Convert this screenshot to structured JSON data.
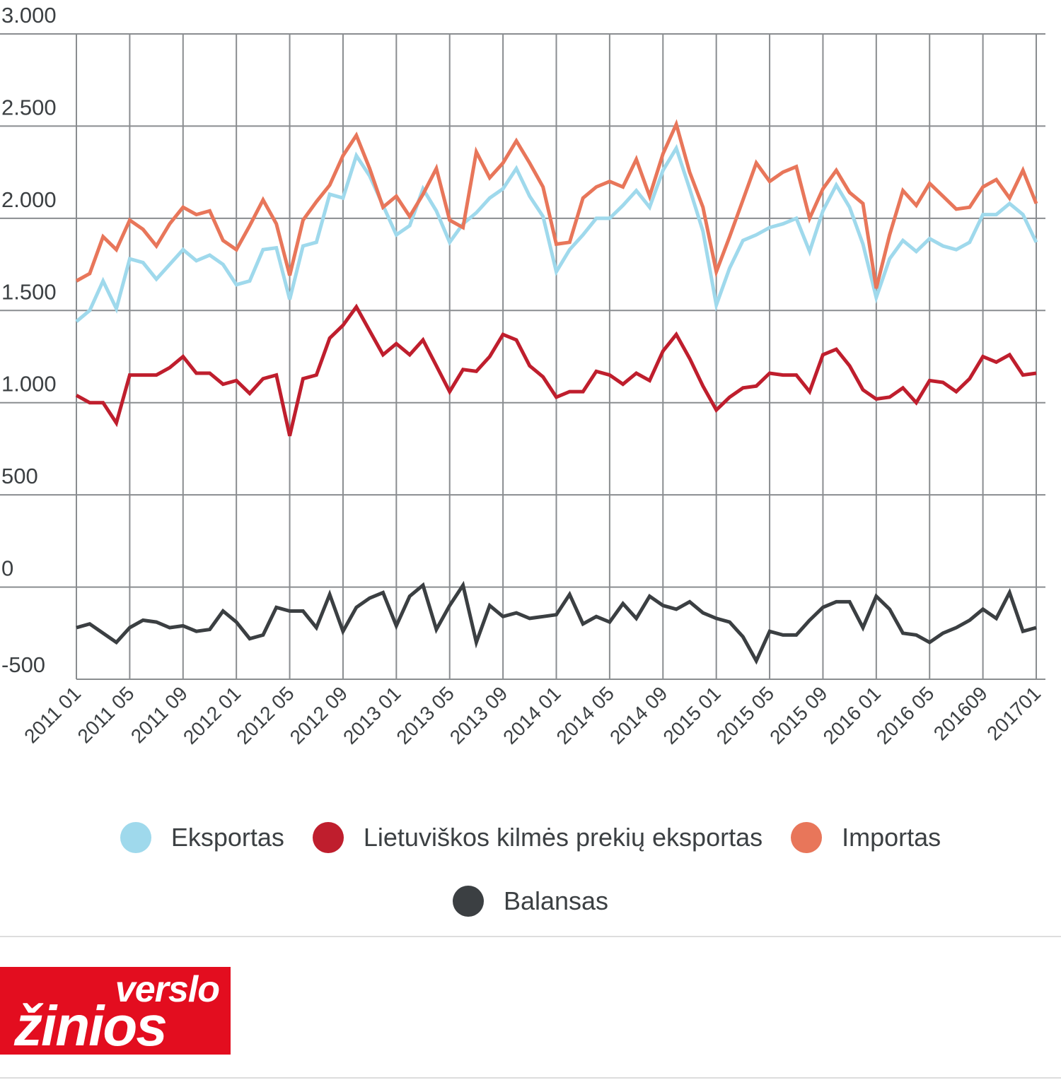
{
  "chart_data": {
    "type": "line",
    "yticks": [
      3000,
      2500,
      2000,
      1500,
      1000,
      500,
      0,
      -500
    ],
    "ytick_labels": [
      "3.000",
      "2.500",
      "2.000",
      "1.500",
      "1.000",
      "500",
      "0",
      "-500"
    ],
    "ylim": [
      -500,
      3000
    ],
    "xtick_labels": [
      "2011 01",
      "2011 05",
      "2011 09",
      "2012 01",
      "2012 05",
      "2012 09",
      "2013 01",
      "2013 05",
      "2013 09",
      "2014 01",
      "2014 05",
      "2014 09",
      "2015 01",
      "2015 05",
      "2015 09",
      "2016 01",
      "2016 05",
      "201609",
      "201701"
    ],
    "x": [
      "2011-01",
      "2011-02",
      "2011-03",
      "2011-04",
      "2011-05",
      "2011-06",
      "2011-07",
      "2011-08",
      "2011-09",
      "2011-10",
      "2011-11",
      "2011-12",
      "2012-01",
      "2012-02",
      "2012-03",
      "2012-04",
      "2012-05",
      "2012-06",
      "2012-07",
      "2012-08",
      "2012-09",
      "2012-10",
      "2012-11",
      "2012-12",
      "2013-01",
      "2013-02",
      "2013-03",
      "2013-04",
      "2013-05",
      "2013-06",
      "2013-07",
      "2013-08",
      "2013-09",
      "2013-10",
      "2013-11",
      "2013-12",
      "2014-01",
      "2014-02",
      "2014-03",
      "2014-04",
      "2014-05",
      "2014-06",
      "2014-07",
      "2014-08",
      "2014-09",
      "2014-10",
      "2014-11",
      "2014-12",
      "2015-01",
      "2015-02",
      "2015-03",
      "2015-04",
      "2015-05",
      "2015-06",
      "2015-07",
      "2015-08",
      "2015-09",
      "2015-10",
      "2015-11",
      "2015-12",
      "2016-01",
      "2016-02",
      "2016-03",
      "2016-04",
      "2016-05",
      "2016-06",
      "2016-07",
      "2016-08",
      "2016-09",
      "2016-10",
      "2016-11",
      "2016-12",
      "2017-01"
    ],
    "grid": true,
    "legend_position": "bottom",
    "series": [
      {
        "name": "Eksportas",
        "color": "#9fd9ec",
        "values": [
          1440,
          1500,
          1660,
          1510,
          1780,
          1760,
          1670,
          1750,
          1830,
          1770,
          1800,
          1750,
          1640,
          1660,
          1830,
          1840,
          1560,
          1850,
          1870,
          2130,
          2110,
          2340,
          2230,
          2070,
          1910,
          1960,
          2160,
          2040,
          1870,
          1970,
          2030,
          2110,
          2160,
          2270,
          2120,
          2010,
          1710,
          1830,
          1910,
          2000,
          2000,
          2070,
          2150,
          2060,
          2260,
          2380,
          2160,
          1930,
          1530,
          1730,
          1880,
          1910,
          1950,
          1970,
          2000,
          1820,
          2040,
          2180,
          2060,
          1860,
          1570,
          1780,
          1880,
          1820,
          1890,
          1850,
          1830,
          1870,
          2020,
          2020,
          2080,
          2020,
          1870
        ]
      },
      {
        "name": "Lietuviškos kilmės prekių eksportas",
        "color": "#bf1e2d",
        "values": [
          1040,
          1000,
          1000,
          890,
          1150,
          1150,
          1150,
          1190,
          1250,
          1160,
          1160,
          1100,
          1120,
          1050,
          1130,
          1150,
          820,
          1130,
          1150,
          1350,
          1420,
          1520,
          1390,
          1260,
          1320,
          1260,
          1340,
          1200,
          1060,
          1180,
          1170,
          1250,
          1370,
          1340,
          1200,
          1140,
          1030,
          1060,
          1060,
          1170,
          1150,
          1100,
          1160,
          1120,
          1280,
          1370,
          1240,
          1090,
          960,
          1030,
          1080,
          1090,
          1160,
          1150,
          1150,
          1060,
          1260,
          1290,
          1200,
          1070,
          1020,
          1030,
          1080,
          1000,
          1120,
          1110,
          1060,
          1130,
          1250,
          1220,
          1260,
          1150,
          1160
        ]
      },
      {
        "name": "Importas",
        "color": "#e8765a",
        "values": [
          1660,
          1700,
          1900,
          1830,
          1990,
          1940,
          1850,
          1970,
          2060,
          2020,
          2040,
          1880,
          1830,
          1960,
          2100,
          1970,
          1690,
          1990,
          2090,
          2180,
          2340,
          2450,
          2270,
          2060,
          2120,
          2010,
          2130,
          2270,
          1990,
          1950,
          2360,
          2220,
          2300,
          2420,
          2300,
          2170,
          1860,
          1870,
          2110,
          2170,
          2200,
          2170,
          2320,
          2120,
          2350,
          2510,
          2250,
          2060,
          1710,
          1900,
          2100,
          2300,
          2200,
          2250,
          2280,
          2000,
          2160,
          2260,
          2140,
          2080,
          1620,
          1910,
          2150,
          2070,
          2190,
          2120,
          2050,
          2060,
          2170,
          2210,
          2110,
          2260,
          2080
        ]
      },
      {
        "name": "Balansas",
        "color": "#3b3f42",
        "values": [
          -220,
          -200,
          -250,
          -300,
          -220,
          -180,
          -190,
          -220,
          -210,
          -240,
          -230,
          -130,
          -190,
          -280,
          -260,
          -110,
          -130,
          -130,
          -220,
          -40,
          -240,
          -110,
          -60,
          -30,
          -210,
          -50,
          10,
          -230,
          -100,
          10,
          -300,
          -100,
          -160,
          -140,
          -170,
          -160,
          -150,
          -40,
          -200,
          -160,
          -190,
          -90,
          -170,
          -50,
          -100,
          -120,
          -80,
          -140,
          -170,
          -190,
          -270,
          -400,
          -240,
          -260,
          -260,
          -180,
          -110,
          -80,
          -80,
          -220,
          -50,
          -120,
          -250,
          -260,
          -300,
          -250,
          -220,
          -180,
          -120,
          -170,
          -30,
          -240,
          -220
        ]
      }
    ]
  },
  "brand": {
    "top": "verslo",
    "bottom": "žinios",
    "background": "#e30d1f"
  }
}
